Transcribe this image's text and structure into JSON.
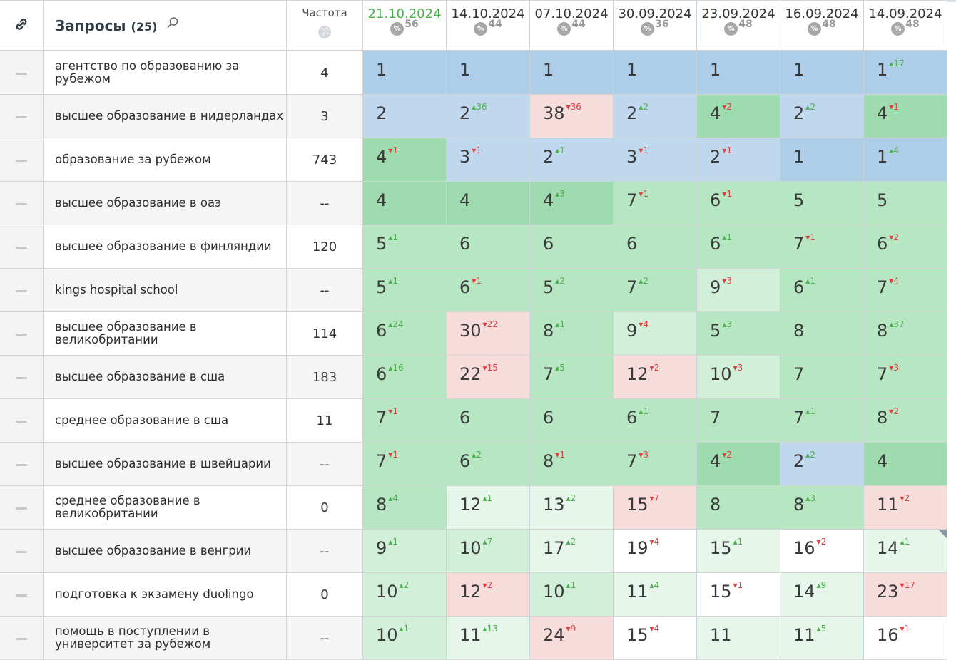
{
  "header": {
    "queries_label": "Запросы",
    "queries_count": "(25)",
    "frequency_label": "Частота",
    "dates": [
      {
        "label": "21.10.2024",
        "percent": "56",
        "active": true
      },
      {
        "label": "14.10.2024",
        "percent": "44",
        "active": false
      },
      {
        "label": "07.10.2024",
        "percent": "44",
        "active": false
      },
      {
        "label": "30.09.2024",
        "percent": "36",
        "active": false
      },
      {
        "label": "23.09.2024",
        "percent": "48",
        "active": false
      },
      {
        "label": "16.09.2024",
        "percent": "48",
        "active": false
      },
      {
        "label": "14.09.2024",
        "percent": "48",
        "active": false
      }
    ]
  },
  "colors": {
    "blue": "#aecde9",
    "blue_light": "#bfd8ee",
    "green_dark": "#9edcb0",
    "green": "#b6e6c2",
    "green_light": "#d2f0d9",
    "green_pale": "#e6f6ea",
    "pink": "#f7dcdc",
    "white": "#ffffff",
    "up": "#4cae4c",
    "down": "#e04040"
  },
  "rows": [
    {
      "query": "агентство по образованию за рубежом",
      "freq": "4",
      "cells": [
        [
          "1",
          "",
          ""
        ],
        [
          "1",
          "",
          ""
        ],
        [
          "1",
          "",
          ""
        ],
        [
          "1",
          "",
          ""
        ],
        [
          "1",
          "",
          ""
        ],
        [
          "1",
          "",
          ""
        ],
        [
          "1",
          "17",
          "up"
        ]
      ],
      "colors": [
        "blue",
        "blue",
        "blue",
        "blue",
        "blue",
        "blue",
        "blue"
      ]
    },
    {
      "query": "высшее образование в нидерландах",
      "freq": "3",
      "cells": [
        [
          "2",
          "",
          ""
        ],
        [
          "2",
          "36",
          "up"
        ],
        [
          "38",
          "36",
          "down"
        ],
        [
          "2",
          "2",
          "up"
        ],
        [
          "4",
          "2",
          "down"
        ],
        [
          "2",
          "2",
          "up"
        ],
        [
          "4",
          "1",
          "down"
        ]
      ],
      "colors": [
        "blue_light",
        "blue_light",
        "pink",
        "blue_light",
        "green_dark",
        "blue_light",
        "green_dark"
      ]
    },
    {
      "query": "образование за рубежом",
      "freq": "743",
      "cells": [
        [
          "4",
          "1",
          "down"
        ],
        [
          "3",
          "1",
          "down"
        ],
        [
          "2",
          "1",
          "up"
        ],
        [
          "3",
          "1",
          "down"
        ],
        [
          "2",
          "1",
          "down"
        ],
        [
          "1",
          "",
          ""
        ],
        [
          "1",
          "4",
          "up"
        ]
      ],
      "colors": [
        "green_dark",
        "blue_light",
        "blue_light",
        "blue_light",
        "blue_light",
        "blue",
        "blue"
      ]
    },
    {
      "query": "высшее образование в оаэ",
      "freq": "--",
      "cells": [
        [
          "4",
          "",
          ""
        ],
        [
          "4",
          "",
          ""
        ],
        [
          "4",
          "3",
          "up"
        ],
        [
          "7",
          "1",
          "down"
        ],
        [
          "6",
          "1",
          "down"
        ],
        [
          "5",
          "",
          ""
        ],
        [
          "5",
          "",
          ""
        ]
      ],
      "colors": [
        "green_dark",
        "green_dark",
        "green_dark",
        "green",
        "green",
        "green",
        "green"
      ]
    },
    {
      "query": "высшее образование в финляндии",
      "freq": "120",
      "cells": [
        [
          "5",
          "1",
          "up"
        ],
        [
          "6",
          "",
          ""
        ],
        [
          "6",
          "",
          ""
        ],
        [
          "6",
          "",
          ""
        ],
        [
          "6",
          "1",
          "up"
        ],
        [
          "7",
          "1",
          "down"
        ],
        [
          "6",
          "2",
          "down"
        ]
      ],
      "colors": [
        "green",
        "green",
        "green",
        "green",
        "green",
        "green",
        "green"
      ]
    },
    {
      "query": "kings hospital school",
      "freq": "--",
      "cells": [
        [
          "5",
          "1",
          "up"
        ],
        [
          "6",
          "1",
          "down"
        ],
        [
          "5",
          "2",
          "up"
        ],
        [
          "7",
          "2",
          "up"
        ],
        [
          "9",
          "3",
          "down"
        ],
        [
          "6",
          "1",
          "up"
        ],
        [
          "7",
          "4",
          "down"
        ]
      ],
      "colors": [
        "green",
        "green",
        "green",
        "green",
        "green_light",
        "green",
        "green"
      ]
    },
    {
      "query": "высшее образование в великобритании",
      "freq": "114",
      "cells": [
        [
          "6",
          "24",
          "up"
        ],
        [
          "30",
          "22",
          "down"
        ],
        [
          "8",
          "1",
          "up"
        ],
        [
          "9",
          "4",
          "down"
        ],
        [
          "5",
          "3",
          "up"
        ],
        [
          "8",
          "",
          ""
        ],
        [
          "8",
          "37",
          "up"
        ]
      ],
      "colors": [
        "green",
        "pink",
        "green",
        "green_light",
        "green",
        "green",
        "green"
      ]
    },
    {
      "query": "высшее образование в сша",
      "freq": "183",
      "cells": [
        [
          "6",
          "16",
          "up"
        ],
        [
          "22",
          "15",
          "down"
        ],
        [
          "7",
          "5",
          "up"
        ],
        [
          "12",
          "2",
          "down"
        ],
        [
          "10",
          "3",
          "down"
        ],
        [
          "7",
          "",
          ""
        ],
        [
          "7",
          "3",
          "down"
        ]
      ],
      "colors": [
        "green",
        "pink",
        "green",
        "pink",
        "green_light",
        "green",
        "green"
      ]
    },
    {
      "query": "среднее образование в сша",
      "freq": "11",
      "cells": [
        [
          "7",
          "1",
          "down"
        ],
        [
          "6",
          "",
          ""
        ],
        [
          "6",
          "",
          ""
        ],
        [
          "6",
          "1",
          "up"
        ],
        [
          "7",
          "",
          ""
        ],
        [
          "7",
          "1",
          "up"
        ],
        [
          "8",
          "2",
          "down"
        ]
      ],
      "colors": [
        "green",
        "green",
        "green",
        "green",
        "green",
        "green",
        "green"
      ]
    },
    {
      "query": "высшее образование в швейцарии",
      "freq": "--",
      "cells": [
        [
          "7",
          "1",
          "down"
        ],
        [
          "6",
          "2",
          "up"
        ],
        [
          "8",
          "1",
          "down"
        ],
        [
          "7",
          "3",
          "down"
        ],
        [
          "4",
          "2",
          "down"
        ],
        [
          "2",
          "2",
          "up"
        ],
        [
          "4",
          "",
          ""
        ]
      ],
      "colors": [
        "green",
        "green",
        "green",
        "green",
        "green_dark",
        "blue_light",
        "green_dark"
      ]
    },
    {
      "query": "среднее образование в великобритании",
      "freq": "0",
      "cells": [
        [
          "8",
          "4",
          "up"
        ],
        [
          "12",
          "1",
          "up"
        ],
        [
          "13",
          "2",
          "up"
        ],
        [
          "15",
          "7",
          "down"
        ],
        [
          "8",
          "",
          ""
        ],
        [
          "8",
          "3",
          "up"
        ],
        [
          "11",
          "2",
          "down"
        ]
      ],
      "colors": [
        "green",
        "green_pale",
        "green_pale",
        "pink",
        "green",
        "green",
        "pink"
      ]
    },
    {
      "query": "высшее образование в венгрии",
      "freq": "--",
      "cells": [
        [
          "9",
          "1",
          "up"
        ],
        [
          "10",
          "7",
          "up"
        ],
        [
          "17",
          "2",
          "up"
        ],
        [
          "19",
          "4",
          "down"
        ],
        [
          "15",
          "1",
          "up"
        ],
        [
          "16",
          "2",
          "down"
        ],
        [
          "14",
          "1",
          "up"
        ]
      ],
      "colors": [
        "green_light",
        "green_light",
        "green_pale",
        "white",
        "green_pale",
        "white",
        "green_pale"
      ]
    },
    {
      "query": "подготовка к экзамену duolingo",
      "freq": "0",
      "cells": [
        [
          "10",
          "2",
          "up"
        ],
        [
          "12",
          "2",
          "down"
        ],
        [
          "10",
          "1",
          "up"
        ],
        [
          "11",
          "4",
          "up"
        ],
        [
          "15",
          "1",
          "down"
        ],
        [
          "14",
          "9",
          "up"
        ],
        [
          "23",
          "17",
          "down"
        ]
      ],
      "colors": [
        "green_light",
        "pink",
        "green_light",
        "green_pale",
        "white",
        "green_pale",
        "pink"
      ]
    },
    {
      "query": "помощь в поступлении в университет за рубежом",
      "freq": "--",
      "cells": [
        [
          "10",
          "1",
          "up"
        ],
        [
          "11",
          "13",
          "up"
        ],
        [
          "24",
          "9",
          "down"
        ],
        [
          "15",
          "4",
          "down"
        ],
        [
          "11",
          "",
          ""
        ],
        [
          "11",
          "5",
          "up"
        ],
        [
          "16",
          "1",
          "down"
        ]
      ],
      "colors": [
        "green_light",
        "green_pale",
        "pink",
        "white",
        "green_pale",
        "green_pale",
        "white"
      ]
    }
  ]
}
